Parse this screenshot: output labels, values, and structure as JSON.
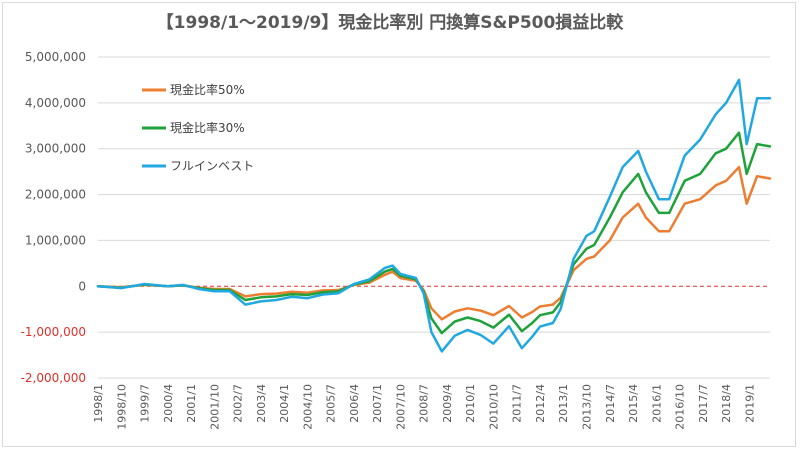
{
  "chart_data": {
    "type": "line",
    "title": "【1998/1～2019/9】現金比率別 円換算S&P500損益比較",
    "ylim": [
      -2000000,
      5000000
    ],
    "yticks": [
      {
        "value": 5000000,
        "label": "5,000,000"
      },
      {
        "value": 4000000,
        "label": "4,000,000"
      },
      {
        "value": 3000000,
        "label": "3,000,000"
      },
      {
        "value": 2000000,
        "label": "2,000,000"
      },
      {
        "value": 1000000,
        "label": "1,000,000"
      },
      {
        "value": 0,
        "label": "0"
      },
      {
        "value": -1000000,
        "label": "-1,000,000"
      },
      {
        "value": -2000000,
        "label": "-2,000,000"
      }
    ],
    "x_start": "1998/1",
    "x_end": "2019/9",
    "xtick_labels": [
      "1998/1",
      "1998/10",
      "1999/7",
      "2000/4",
      "2001/1",
      "2001/10",
      "2002/7",
      "2003/4",
      "2004/1",
      "2004/10",
      "2005/7",
      "2006/4",
      "2007/1",
      "2007/10",
      "2008/7",
      "2009/4",
      "2010/1",
      "2010/10",
      "2011/7",
      "2012/4",
      "2013/1",
      "2013/10",
      "2014/7",
      "2015/4",
      "2016/1",
      "2016/10",
      "2017/7",
      "2018/4",
      "2019/1"
    ],
    "zero_line": {
      "color": "#e0302a",
      "style": "dashed"
    },
    "series": [
      {
        "name": "現金比率50%",
        "color": "#ed7d31",
        "points": [
          [
            "1998/1",
            0
          ],
          [
            "1998/10",
            -20000
          ],
          [
            "1999/7",
            30000
          ],
          [
            "2000/4",
            0
          ],
          [
            "2000/10",
            20000
          ],
          [
            "2001/4",
            -30000
          ],
          [
            "2001/10",
            -60000
          ],
          [
            "2002/4",
            -60000
          ],
          [
            "2002/10",
            -220000
          ],
          [
            "2003/4",
            -170000
          ],
          [
            "2003/10",
            -160000
          ],
          [
            "2004/4",
            -120000
          ],
          [
            "2004/10",
            -140000
          ],
          [
            "2005/4",
            -90000
          ],
          [
            "2005/10",
            -80000
          ],
          [
            "2006/4",
            30000
          ],
          [
            "2006/10",
            80000
          ],
          [
            "2007/4",
            250000
          ],
          [
            "2007/7",
            320000
          ],
          [
            "2007/10",
            180000
          ],
          [
            "2008/4",
            120000
          ],
          [
            "2008/7",
            -80000
          ],
          [
            "2008/10",
            -480000
          ],
          [
            "2009/2",
            -720000
          ],
          [
            "2009/7",
            -550000
          ],
          [
            "2009/12",
            -480000
          ],
          [
            "2010/5",
            -530000
          ],
          [
            "2010/10",
            -630000
          ],
          [
            "2011/4",
            -430000
          ],
          [
            "2011/9",
            -680000
          ],
          [
            "2012/1",
            -560000
          ],
          [
            "2012/4",
            -440000
          ],
          [
            "2012/9",
            -400000
          ],
          [
            "2012/12",
            -250000
          ],
          [
            "2013/5",
            350000
          ],
          [
            "2013/10",
            600000
          ],
          [
            "2014/1",
            650000
          ],
          [
            "2014/7",
            1000000
          ],
          [
            "2014/12",
            1500000
          ],
          [
            "2015/6",
            1800000
          ],
          [
            "2015/9",
            1500000
          ],
          [
            "2016/2",
            1200000
          ],
          [
            "2016/6",
            1200000
          ],
          [
            "2016/12",
            1800000
          ],
          [
            "2017/6",
            1900000
          ],
          [
            "2017/12",
            2200000
          ],
          [
            "2018/4",
            2300000
          ],
          [
            "2018/9",
            2600000
          ],
          [
            "2018/12",
            1800000
          ],
          [
            "2019/4",
            2400000
          ],
          [
            "2019/9",
            2350000
          ]
        ]
      },
      {
        "name": "現金比率30%",
        "color": "#1fa23a",
        "points": [
          [
            "1998/1",
            0
          ],
          [
            "1998/10",
            -30000
          ],
          [
            "1999/7",
            40000
          ],
          [
            "2000/4",
            0
          ],
          [
            "2000/10",
            20000
          ],
          [
            "2001/4",
            -40000
          ],
          [
            "2001/10",
            -80000
          ],
          [
            "2002/4",
            -80000
          ],
          [
            "2002/10",
            -300000
          ],
          [
            "2003/4",
            -240000
          ],
          [
            "2003/10",
            -220000
          ],
          [
            "2004/4",
            -170000
          ],
          [
            "2004/10",
            -190000
          ],
          [
            "2005/4",
            -130000
          ],
          [
            "2005/10",
            -110000
          ],
          [
            "2006/4",
            40000
          ],
          [
            "2006/10",
            110000
          ],
          [
            "2007/4",
            320000
          ],
          [
            "2007/7",
            380000
          ],
          [
            "2007/10",
            230000
          ],
          [
            "2008/4",
            150000
          ],
          [
            "2008/7",
            -120000
          ],
          [
            "2008/10",
            -700000
          ],
          [
            "2009/2",
            -1020000
          ],
          [
            "2009/7",
            -770000
          ],
          [
            "2009/12",
            -680000
          ],
          [
            "2010/5",
            -760000
          ],
          [
            "2010/10",
            -900000
          ],
          [
            "2011/4",
            -620000
          ],
          [
            "2011/9",
            -980000
          ],
          [
            "2012/1",
            -800000
          ],
          [
            "2012/4",
            -630000
          ],
          [
            "2012/9",
            -570000
          ],
          [
            "2012/12",
            -350000
          ],
          [
            "2013/5",
            480000
          ],
          [
            "2013/10",
            820000
          ],
          [
            "2014/1",
            900000
          ],
          [
            "2014/7",
            1500000
          ],
          [
            "2014/12",
            2050000
          ],
          [
            "2015/6",
            2450000
          ],
          [
            "2015/9",
            2050000
          ],
          [
            "2016/2",
            1600000
          ],
          [
            "2016/6",
            1600000
          ],
          [
            "2016/12",
            2300000
          ],
          [
            "2017/6",
            2450000
          ],
          [
            "2017/12",
            2900000
          ],
          [
            "2018/4",
            3000000
          ],
          [
            "2018/9",
            3350000
          ],
          [
            "2018/12",
            2450000
          ],
          [
            "2019/4",
            3100000
          ],
          [
            "2019/9",
            3050000
          ]
        ]
      },
      {
        "name": "フルインベスト",
        "color": "#22a8e0",
        "points": [
          [
            "1998/1",
            0
          ],
          [
            "1998/10",
            -40000
          ],
          [
            "1999/7",
            50000
          ],
          [
            "2000/4",
            0
          ],
          [
            "2000/10",
            30000
          ],
          [
            "2001/4",
            -60000
          ],
          [
            "2001/10",
            -110000
          ],
          [
            "2002/4",
            -110000
          ],
          [
            "2002/10",
            -400000
          ],
          [
            "2003/4",
            -330000
          ],
          [
            "2003/10",
            -300000
          ],
          [
            "2004/4",
            -230000
          ],
          [
            "2004/10",
            -260000
          ],
          [
            "2005/4",
            -180000
          ],
          [
            "2005/10",
            -150000
          ],
          [
            "2006/4",
            50000
          ],
          [
            "2006/10",
            150000
          ],
          [
            "2007/4",
            400000
          ],
          [
            "2007/7",
            450000
          ],
          [
            "2007/10",
            270000
          ],
          [
            "2008/4",
            180000
          ],
          [
            "2008/7",
            -160000
          ],
          [
            "2008/10",
            -1000000
          ],
          [
            "2009/2",
            -1420000
          ],
          [
            "2009/7",
            -1080000
          ],
          [
            "2009/12",
            -950000
          ],
          [
            "2010/5",
            -1060000
          ],
          [
            "2010/10",
            -1250000
          ],
          [
            "2011/4",
            -870000
          ],
          [
            "2011/9",
            -1350000
          ],
          [
            "2012/1",
            -1100000
          ],
          [
            "2012/4",
            -880000
          ],
          [
            "2012/9",
            -800000
          ],
          [
            "2012/12",
            -500000
          ],
          [
            "2013/5",
            600000
          ],
          [
            "2013/10",
            1100000
          ],
          [
            "2014/1",
            1200000
          ],
          [
            "2014/7",
            1950000
          ],
          [
            "2014/12",
            2600000
          ],
          [
            "2015/6",
            2950000
          ],
          [
            "2015/9",
            2500000
          ],
          [
            "2016/2",
            1900000
          ],
          [
            "2016/6",
            1900000
          ],
          [
            "2016/12",
            2850000
          ],
          [
            "2017/6",
            3200000
          ],
          [
            "2017/12",
            3750000
          ],
          [
            "2018/4",
            4000000
          ],
          [
            "2018/9",
            4500000
          ],
          [
            "2018/12",
            3100000
          ],
          [
            "2019/4",
            4100000
          ],
          [
            "2019/9",
            4100000
          ]
        ]
      }
    ],
    "legend_position": "top-left"
  }
}
